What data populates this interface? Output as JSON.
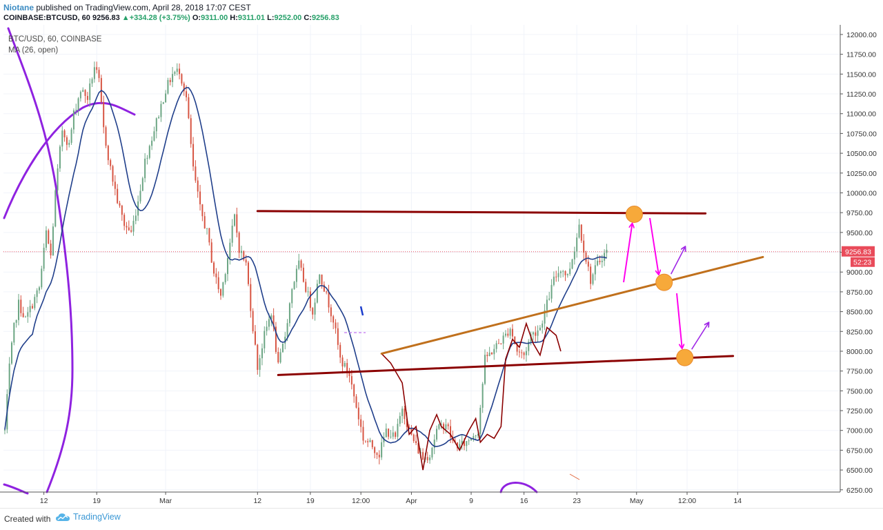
{
  "header": {
    "author": "Niotane",
    "published": "published on TradingView.com, April 28, 2018 17:07 CEST",
    "symbol": "COINBASE:BTCUSD, 60",
    "last": "9256.83",
    "change": "+334.28 (+3.75%)",
    "o_label": "O:",
    "o_value": "9311.00",
    "h_label": "H:",
    "h_value": "9311.01",
    "l_label": "L:",
    "l_value": "9252.00",
    "c_label": "C:",
    "c_value": "9256.83"
  },
  "legend": {
    "series": "BTC/USD, 60, COINBASE",
    "indicator": "MA (26, open)"
  },
  "footer": {
    "created_with": "Created with",
    "brand": "TradingView"
  },
  "colors": {
    "up_candle": "#6ba583",
    "down_candle": "#d75442",
    "ma": "#1f3e8a",
    "resistance": "#8b0000",
    "trend": "#c0701c",
    "arrow_pink": "#ff00ee",
    "arrow_purple": "#9f27e6",
    "curve": "#8f22e0",
    "target": "#f7a93a",
    "price_tag": "#e94b5a",
    "dash_violet": "#c070f0"
  },
  "chart_data": {
    "type": "candlestick",
    "symbol": "BTC/USD",
    "interval": "60",
    "exchange": "COINBASE",
    "ylim": [
      6200,
      12100
    ],
    "y_ticks": [
      "12000.00",
      "11750.00",
      "11500.00",
      "11250.00",
      "11000.00",
      "10750.00",
      "10500.00",
      "10250.00",
      "10000.00",
      "9750.00",
      "9500.00",
      "9250.00",
      "9000.00",
      "8750.00",
      "8500.00",
      "8250.00",
      "8000.00",
      "7750.00",
      "7500.00",
      "7250.00",
      "7000.00",
      "6750.00",
      "6500.00",
      "6250.00"
    ],
    "x_ticks": [
      "12",
      "19",
      "Mar",
      "12",
      "19",
      "12:00",
      "Apr",
      "9",
      "16",
      "23",
      "May",
      "12:00",
      "14"
    ],
    "current_price": "9256.83",
    "countdown": "52:23",
    "price_path": [
      [
        0,
        7000
      ],
      [
        0.2,
        7800
      ],
      [
        0.4,
        8300
      ],
      [
        0.6,
        8600
      ],
      [
        0.9,
        8400
      ],
      [
        1.2,
        8600
      ],
      [
        1.5,
        8800
      ],
      [
        1.8,
        9500
      ],
      [
        2.0,
        9200
      ],
      [
        2.2,
        10000
      ],
      [
        2.5,
        10800
      ],
      [
        2.8,
        10600
      ],
      [
        3.0,
        11000
      ],
      [
        3.3,
        11300
      ],
      [
        3.6,
        11200
      ],
      [
        3.9,
        11600
      ],
      [
        4.1,
        11400
      ],
      [
        4.3,
        10800
      ],
      [
        4.6,
        10300
      ],
      [
        4.9,
        9900
      ],
      [
        5.2,
        9600
      ],
      [
        5.5,
        9500
      ],
      [
        5.8,
        9900
      ],
      [
        6.1,
        10400
      ],
      [
        6.4,
        10700
      ],
      [
        6.7,
        11000
      ],
      [
        7.0,
        11300
      ],
      [
        7.3,
        11500
      ],
      [
        7.6,
        11550
      ],
      [
        7.9,
        11200
      ],
      [
        8.2,
        10300
      ],
      [
        8.5,
        9800
      ],
      [
        8.8,
        9500
      ],
      [
        9.1,
        9000
      ],
      [
        9.4,
        8700
      ],
      [
        9.7,
        9200
      ],
      [
        10.0,
        9700
      ],
      [
        10.2,
        9300
      ],
      [
        10.5,
        9100
      ],
      [
        10.8,
        8300
      ],
      [
        11.0,
        7800
      ],
      [
        11.3,
        8200
      ],
      [
        11.6,
        8500
      ],
      [
        11.9,
        7800
      ],
      [
        12.2,
        8200
      ],
      [
        12.5,
        8800
      ],
      [
        12.8,
        9100
      ],
      [
        13.1,
        8800
      ],
      [
        13.4,
        8500
      ],
      [
        13.7,
        9000
      ],
      [
        14.0,
        8700
      ],
      [
        14.3,
        8400
      ],
      [
        14.6,
        7900
      ],
      [
        15.0,
        7700
      ],
      [
        15.3,
        7300
      ],
      [
        15.6,
        6900
      ],
      [
        16.0,
        6800
      ],
      [
        16.3,
        6700
      ],
      [
        16.6,
        7000
      ],
      [
        17.0,
        6900
      ],
      [
        17.3,
        7300
      ],
      [
        17.6,
        7000
      ],
      [
        17.9,
        6800
      ],
      [
        18.2,
        6650
      ],
      [
        18.5,
        6700
      ],
      [
        18.8,
        7000
      ],
      [
        19.2,
        7100
      ],
      [
        19.5,
        6850
      ],
      [
        19.8,
        6800
      ],
      [
        20.1,
        6850
      ],
      [
        20.4,
        6950
      ],
      [
        20.6,
        7000
      ],
      [
        20.9,
        7900
      ],
      [
        21.2,
        8000
      ],
      [
        21.5,
        8100
      ],
      [
        21.8,
        8200
      ],
      [
        22.0,
        8300
      ],
      [
        22.3,
        8000
      ],
      [
        22.6,
        7950
      ],
      [
        22.9,
        8200
      ],
      [
        23.3,
        8300
      ],
      [
        23.6,
        8600
      ],
      [
        23.9,
        8900
      ],
      [
        24.2,
        9050
      ],
      [
        24.5,
        8950
      ],
      [
        24.8,
        9300
      ],
      [
        25.0,
        9600
      ],
      [
        25.2,
        9300
      ],
      [
        25.5,
        8900
      ],
      [
        25.8,
        9100
      ],
      [
        26.0,
        9200
      ],
      [
        26.2,
        9256.83
      ]
    ],
    "day_ticks": [
      [
        "12",
        1.7
      ],
      [
        "19",
        4.0
      ],
      [
        "Mar",
        7.0
      ],
      [
        "12",
        11.0
      ],
      [
        "19",
        13.3
      ],
      [
        "12:00",
        15.5
      ],
      [
        "Apr",
        17.7
      ],
      [
        "9",
        20.3
      ],
      [
        "16",
        22.6
      ],
      [
        "23",
        24.9
      ],
      [
        "May",
        27.5
      ],
      [
        "12:00",
        29.7
      ],
      [
        "14",
        31.9
      ]
    ],
    "drawings": {
      "resistance": [
        [
          11.0,
          9770
        ],
        [
          30.5,
          9740
        ]
      ],
      "support": [
        [
          11.9,
          7700
        ],
        [
          31.7,
          7940
        ]
      ],
      "rising_trend": [
        [
          16.4,
          7970
        ],
        [
          33.0,
          9190
        ]
      ],
      "targets": [
        [
          27.4,
          9730
        ],
        [
          28.7,
          8870
        ],
        [
          29.6,
          7920
        ]
      ]
    }
  }
}
